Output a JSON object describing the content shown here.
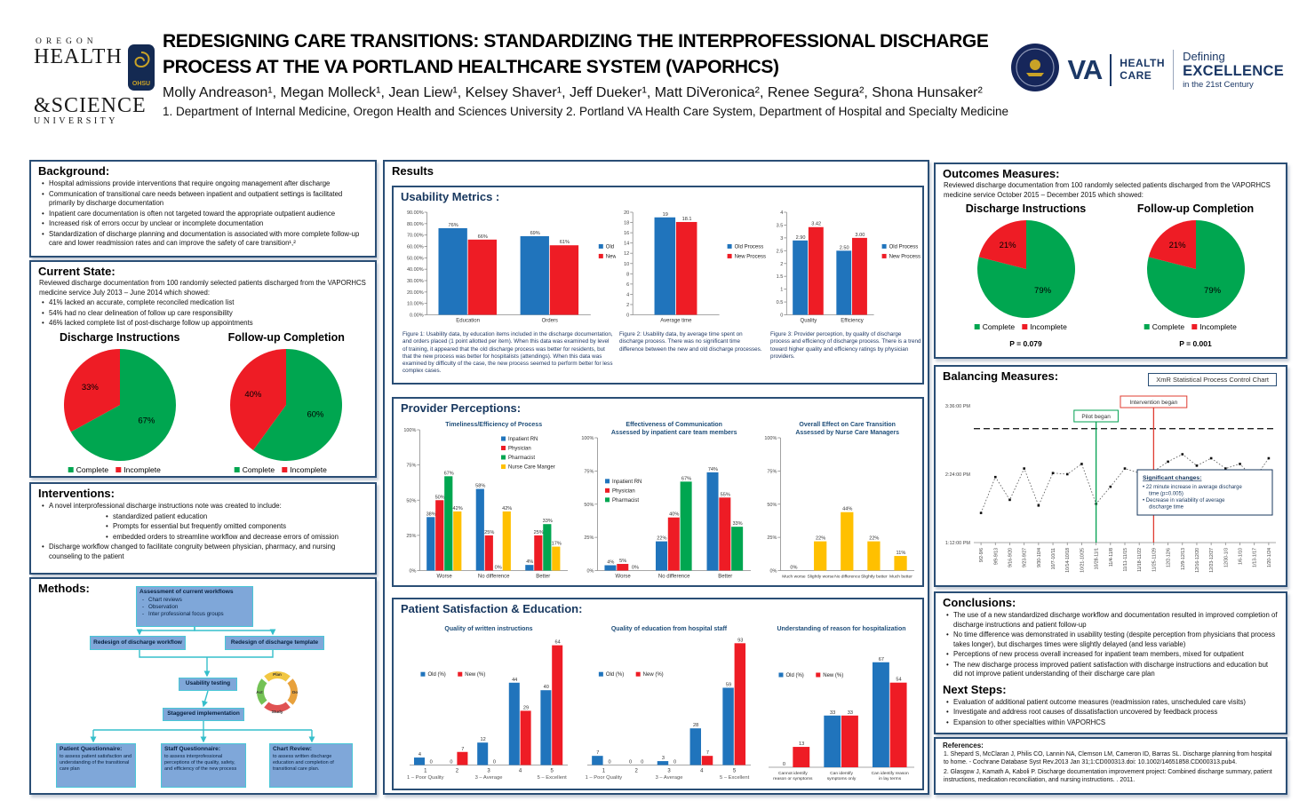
{
  "header": {
    "ohsu": {
      "oregon": "OREGON",
      "health": "HEALTH",
      "science": "&SCIENCE",
      "university": "UNIVERSITY",
      "badge": "OHSU"
    },
    "title": "REDESIGNING CARE TRANSITIONS: STANDARDIZING THE INTERPROFESSIONAL DISCHARGE\nPROCESS AT THE VA PORTLAND HEALTHCARE SYSTEM (VAPORHCS)",
    "authors": "Molly Andreason¹, Megan Molleck¹, Jean Liew¹, Kelsey Shaver¹, Jeff Dueker¹, Matt DiVeronica², Renee Segura², Shona Hunsaker²",
    "affiliations": "1. Department of Internal Medicine, Oregon Health and Sciences University 2. Portland VA Health Care System, Department of Hospital and Specialty Medicine",
    "va": {
      "va": "VA",
      "health_care": "HEALTH\nCARE",
      "defining": "Defining",
      "excellence": "EXCELLENCE",
      "century": "in the 21st Century"
    }
  },
  "background": {
    "heading": "Background:",
    "bullets": [
      "Hospital admissions provide interventions that require ongoing management after discharge",
      "Communication of transitional care needs between inpatient and outpatient settings is facilitated primarily by discharge documentation",
      "Inpatient care documentation is often not targeted toward the appropriate outpatient audience",
      "Increased risk of errors occur by unclear or incomplete documentation",
      "Standardization of discharge planning and documentation is associated with more complete follow-up care and lower readmission rates and can improve the safety of care transition¹,²"
    ]
  },
  "current_state": {
    "heading": "Current State:",
    "intro": "Reviewed discharge documentation from 100 randomly selected patients discharged from the VAPORHCS medicine service July 2013 – June 2014 which showed:",
    "bullets": [
      "41% lacked an accurate, complete reconciled medication list",
      "54% had no clear delineation of follow up care responsibility",
      "46% lacked complete list of post-discharge follow up appointments"
    ]
  },
  "interventions": {
    "heading": "Interventions:",
    "items": [
      {
        "text": "A novel interprofessional discharge instructions note was created to include:",
        "level": 1
      },
      {
        "text": "standardized patient education",
        "level": 2
      },
      {
        "text": "Prompts for essential but frequently omitted components",
        "level": 2
      },
      {
        "text": "embedded orders to streamline workflow and decrease errors of omission",
        "level": 2
      },
      {
        "text": "Discharge workflow changed to facilitate congruity between physician, pharmacy, and nursing counseling to the patient",
        "level": 1
      }
    ]
  },
  "methods": {
    "heading": "Methods:",
    "flow": {
      "assess_title": "Assessment of current workflows",
      "assess_items": [
        "Chart reviews",
        "Observation",
        "Inter professional focus groups"
      ],
      "redesign_workflow": "Redesign of discharge workflow",
      "redesign_template": "Redesign of discharge template",
      "usability": "Usability testing",
      "staggered": "Staggered implementation",
      "q1_title": "Patient Questionnaire:",
      "q1_body": "to assess patient satisfaction and understanding of the transitional care plan",
      "q2_title": "Staff Questionnaire:",
      "q2_body": "to assess interprofessional perceptions of the quality, safety, and efficiency of the new process",
      "q3_title": "Chart Review:",
      "q3_body": "to assess written discharge education and completion of transitional care plan."
    },
    "pdsa": [
      "Plan",
      "Do",
      "Study",
      "Act"
    ]
  },
  "results": {
    "heading": "Results",
    "usability_heading": "Usability Metrics :",
    "provider_heading": "Provider Perceptions:",
    "patient_heading": "Patient Satisfaction & Education:"
  },
  "outcomes": {
    "heading": "Outcomes Measures:",
    "intro": "Reviewed discharge documentation from 100 randomly selected patients discharged from the VAPORHCS medicine service October 2015 – December 2015 which showed:"
  },
  "balancing": {
    "heading": "Balancing Measures:",
    "chart_label": "XmR Statistical Process Control Chart"
  },
  "conclusions": {
    "heading": "Conclusions:",
    "bullets": [
      "The use of a new standardized discharge workflow and documentation resulted in improved completion of discharge instructions and patient follow-up",
      "No time difference was demonstrated in usability testing (despite perception from physicians that process takes longer), but discharges times were slightly delayed (and less variable)",
      "Perceptions of new process overall increased for inpatient team members, mixed for outpatient",
      "The new discharge process improved patient satisfaction with discharge instructions and education but did not improve patient understanding of their discharge care plan"
    ],
    "next_heading": "Next Steps:",
    "next_bullets": [
      "Evaluation of additional patient outcome measures (readmission rates, unscheduled care visits)",
      "Investigate and address root causes of dissatisfaction uncovered by feedback process",
      "Expansion to other specialties within VAPORHCS"
    ]
  },
  "references": {
    "heading": "References:",
    "items": [
      "1. Shepard S, McClaran J, Philis CO, Lannin NA, Clemson LM, Cameron ID, Barras SL. Discharge planning from hospital to home. - Cochrane Database Syst Rev.2013 Jan 31;1:CD000313.doi: 10.1002/14651858.CD000313.pub4.",
      "2. Glasgow J, Kamath A, Kaboli P. Discharge documentation improvement project: Combined discharge summary, patient instructions, medication reconciliation, and nursing instructions. . 2011."
    ]
  },
  "chart_data": [
    {
      "id": "cs_pie_di",
      "type": "pie",
      "title": "Discharge Instructions",
      "labels": [
        "Complete",
        "Incomplete"
      ],
      "values": [
        67,
        33
      ],
      "slice_labels": [
        "67%",
        "33%"
      ],
      "colors": [
        "#00A650",
        "#EE1C25"
      ]
    },
    {
      "id": "cs_pie_fu",
      "type": "pie",
      "title": "Follow-up Completion",
      "labels": [
        "Complete",
        "Incomplete"
      ],
      "values": [
        60,
        40
      ],
      "slice_labels": [
        "60%",
        "40%"
      ],
      "colors": [
        "#00A650",
        "#EE1C25"
      ]
    },
    {
      "id": "um_fig1",
      "type": "bar",
      "categories": [
        "Education",
        "Orders"
      ],
      "ylim": [
        0,
        90
      ],
      "yticks": [
        0,
        10,
        20,
        30,
        40,
        50,
        60,
        70,
        80,
        90
      ],
      "ytick_labels": [
        "0.00%",
        "10.00%",
        "20.00%",
        "30.00%",
        "40.00%",
        "50.00%",
        "60.00%",
        "70.00%",
        "80.00%",
        "90.00%"
      ],
      "series": [
        {
          "name": "Old",
          "color": "#2074BC",
          "values": [
            76,
            69
          ],
          "labels": [
            "76%",
            "69%"
          ]
        },
        {
          "name": "New",
          "color": "#EE1C25",
          "values": [
            66,
            61
          ],
          "labels": [
            "66%",
            "61%"
          ]
        }
      ],
      "legend": "right",
      "caption": "Figure 1: Usability data, by education items included in the discharge documentation, and orders placed (1 point allotted per item). When this data was examined by level of training, it appeared that the old discharge process was better for residents, but that the new process was better for hospitalists (attendings). When this data was examined by difficulty of the case, the new process seemed to perform better for less complex cases."
    },
    {
      "id": "um_fig2",
      "type": "bar",
      "categories": [
        "Average time"
      ],
      "ylim": [
        0,
        20
      ],
      "yticks": [
        0,
        2,
        4,
        6,
        8,
        10,
        12,
        14,
        16,
        18,
        20
      ],
      "ytick_labels": [
        "0",
        "2",
        "4",
        "6",
        "8",
        "10",
        "12",
        "14",
        "16",
        "18",
        "20"
      ],
      "bar_frac": 0.5,
      "series": [
        {
          "name": "Old Process",
          "color": "#2074BC",
          "values": [
            19
          ],
          "labels": [
            "19"
          ]
        },
        {
          "name": "New Process",
          "color": "#EE1C25",
          "values": [
            18.1
          ],
          "labels": [
            "18.1"
          ]
        }
      ],
      "legend": "right",
      "caption": "Figure 2: Usability data, by average time spent on discharge process. There was no significant time difference between the new and old discharge processes."
    },
    {
      "id": "um_fig3",
      "type": "bar",
      "categories": [
        "Quality",
        "Efficiency"
      ],
      "ylim": [
        0,
        4
      ],
      "yticks": [
        0,
        0.5,
        1,
        1.5,
        2,
        2.5,
        3,
        3.5,
        4
      ],
      "ytick_labels": [
        "0",
        "0.5",
        "1",
        "1.5",
        "2",
        "2.5",
        "3",
        "3.5",
        "4"
      ],
      "series": [
        {
          "name": "Old Process",
          "color": "#2074BC",
          "values": [
            2.9,
            2.5
          ],
          "labels": [
            "2.90",
            "2.50"
          ]
        },
        {
          "name": "New Process",
          "color": "#EE1C25",
          "values": [
            3.42,
            3.0
          ],
          "labels": [
            "3.42",
            "3.00"
          ]
        }
      ],
      "legend": "right",
      "caption": "Figure 3: Provider perception, by quality of discharge process and efficiency of discharge process. There is a trend toward higher quality and efficiency ratings by physician providers."
    },
    {
      "id": "pp1",
      "type": "bar",
      "title": "Timeliness/Efficiency of Process",
      "categories": [
        "Worse",
        "No difference",
        "Better"
      ],
      "ylim": [
        0,
        100
      ],
      "yticks": [
        0,
        25,
        50,
        75,
        100
      ],
      "ytick_labels": [
        "0%",
        "25%",
        "50%",
        "75%",
        "100%"
      ],
      "series": [
        {
          "name": "Inpatient RN",
          "color": "#2074BC",
          "values": [
            38,
            58,
            4
          ],
          "labels": [
            "38%",
            "58%",
            "4%"
          ]
        },
        {
          "name": "Physician",
          "color": "#EE1C25",
          "values": [
            50,
            25,
            25
          ],
          "labels": [
            "50%",
            "25%",
            "25%"
          ]
        },
        {
          "name": "Pharmacist",
          "color": "#00A650",
          "values": [
            67,
            0,
            33
          ],
          "labels": [
            "67%",
            "0%",
            "33%"
          ]
        },
        {
          "name": "Nurse Care Manger",
          "color": "#FFC000",
          "values": [
            42,
            42,
            17
          ],
          "labels": [
            "42%",
            "42%",
            "17%"
          ]
        }
      ],
      "legend": "inset-tr"
    },
    {
      "id": "pp2",
      "type": "bar",
      "title": "Effectiveness of Communication\nAssessed by inpatient care team members",
      "categories": [
        "Worse",
        "No difference",
        "Better"
      ],
      "ylim": [
        0,
        100
      ],
      "yticks": [
        0,
        25,
        50,
        75,
        100
      ],
      "ytick_labels": [
        "0%",
        "25%",
        "50%",
        "75%",
        "100%"
      ],
      "series": [
        {
          "name": "Inpatient RN",
          "color": "#2074BC",
          "values": [
            4,
            22,
            74
          ],
          "labels": [
            "4%",
            "22%",
            "74%"
          ]
        },
        {
          "name": "Physician",
          "color": "#EE1C25",
          "values": [
            5,
            40,
            55
          ],
          "labels": [
            "5%",
            "40%",
            "55%"
          ]
        },
        {
          "name": "Pharmacist",
          "color": "#00A650",
          "values": [
            0,
            67,
            33
          ],
          "labels": [
            "0%",
            "67%",
            "33%"
          ]
        }
      ],
      "legend": "inset-l"
    },
    {
      "id": "pp3",
      "type": "bar",
      "title": "Overall Effect on Care Transition\nAssessed by Nurse Care Managers",
      "categories": [
        "Much worse",
        "Slightly worse",
        "No difference",
        "Slightly better",
        "Much better"
      ],
      "ylim": [
        0,
        100
      ],
      "yticks": [
        0,
        25,
        50,
        75,
        100
      ],
      "ytick_labels": [
        "0%",
        "25%",
        "50%",
        "75%",
        "100%"
      ],
      "bar_frac": 0.5,
      "small_cats": true,
      "series": [
        {
          "name": "Nurse Care Managers",
          "color": "#FFC000",
          "values": [
            0,
            22,
            44,
            22,
            11
          ],
          "labels": [
            "0%",
            "22%",
            "44%",
            "22%",
            "11%"
          ]
        }
      ],
      "legend": "none"
    },
    {
      "id": "ps1",
      "type": "bar",
      "title": "Quality of written instructions",
      "categories": [
        "1",
        "2",
        "3",
        "4",
        "5"
      ],
      "ylim": [
        0,
        70
      ],
      "series": [
        {
          "name": "Old (%)",
          "color": "#2074BC",
          "values": [
            4,
            0,
            12,
            44,
            40
          ],
          "labels": [
            "4",
            "0",
            "12",
            "44",
            "40"
          ]
        },
        {
          "name": "New (%)",
          "color": "#EE1C25",
          "values": [
            0,
            7,
            0,
            29,
            64
          ],
          "labels": [
            "0",
            "7",
            "0",
            "29",
            "64"
          ]
        }
      ],
      "legend": "inline",
      "sub_labels": [
        {
          "cat": 0,
          "text": "1 – Poor Quality"
        },
        {
          "cat": 2,
          "text": "3 – Average"
        },
        {
          "cat": 4,
          "text": "5 – Excellent"
        }
      ]
    },
    {
      "id": "ps2",
      "type": "bar",
      "title": "Quality of education from hospital staff",
      "categories": [
        "1",
        "2",
        "3",
        "4",
        "5"
      ],
      "ylim": [
        0,
        100
      ],
      "series": [
        {
          "name": "Old (%)",
          "color": "#2074BC",
          "values": [
            7,
            0,
            3,
            28,
            59
          ],
          "labels": [
            "7",
            "0",
            "3",
            "28",
            "59"
          ]
        },
        {
          "name": "New (%)",
          "color": "#EE1C25",
          "values": [
            0,
            0,
            0,
            7,
            93
          ],
          "labels": [
            "0",
            "0",
            "0",
            "7",
            "93"
          ]
        }
      ],
      "legend": "inline",
      "sub_labels": [
        {
          "cat": 0,
          "text": "1 – Poor Quality"
        },
        {
          "cat": 2,
          "text": "3 – Average"
        },
        {
          "cat": 4,
          "text": "5 – Excellent"
        }
      ]
    },
    {
      "id": "ps3",
      "type": "bar",
      "title": "Understanding of reason for hospitalization",
      "categories": [
        "Cannot identify\nreason or symptoms",
        "Can identify\nsymptoms only",
        "Can identify reason\nin lay terms"
      ],
      "ylim": [
        0,
        85
      ],
      "small_cats": true,
      "series": [
        {
          "name": "Old (%)",
          "color": "#2074BC",
          "values": [
            0,
            33,
            67
          ],
          "labels": [
            "0",
            "33",
            "67"
          ]
        },
        {
          "name": "New (%)",
          "color": "#EE1C25",
          "values": [
            13,
            33,
            54
          ],
          "labels": [
            "13",
            "33",
            "54"
          ]
        }
      ],
      "legend": "inline"
    },
    {
      "id": "om_pie_di",
      "type": "pie",
      "title": "Discharge Instructions",
      "labels": [
        "Complete",
        "Incomplete"
      ],
      "values": [
        79,
        21
      ],
      "slice_labels": [
        "79%",
        "21%"
      ],
      "colors": [
        "#00A650",
        "#EE1C25"
      ],
      "p_value": "P = 0.079"
    },
    {
      "id": "om_pie_fu",
      "type": "pie",
      "title": "Follow-up Completion",
      "labels": [
        "Complete",
        "Incomplete"
      ],
      "values": [
        79,
        21
      ],
      "slice_labels": [
        "79%",
        "21%"
      ],
      "colors": [
        "#00A650",
        "#EE1C25"
      ],
      "p_value": "P = 0.001"
    },
    {
      "id": "xmr",
      "type": "control",
      "ylim": [
        13.2,
        15.6
      ],
      "ucl": 15.2,
      "yticks": [
        {
          "v": 13.2,
          "label": "1:12:00 PM"
        },
        {
          "v": 14.4,
          "label": "2:24:00 PM"
        },
        {
          "v": 15.6,
          "label": "3:36:00 PM"
        }
      ],
      "values": [
        13.72,
        14.35,
        13.95,
        14.5,
        13.85,
        14.42,
        14.4,
        14.58,
        13.88,
        14.18,
        14.5,
        14.42,
        14.45,
        14.62,
        14.75,
        14.55,
        14.68,
        14.5,
        14.58,
        14.32,
        14.68
      ],
      "x_labels": [
        "9/2-9/6",
        "9/9-9/13",
        "9/16-9/20",
        "9/23-9/27",
        "9/30-10/4",
        "10/7-10/11",
        "10/14-10/18",
        "10/21-10/25",
        "10/28-11/1",
        "11/4-11/8",
        "11/11-11/15",
        "11/18-11/22",
        "11/25-11/29",
        "12/2-12/6",
        "12/9-12/13",
        "12/16-12/20",
        "12/23-12/27",
        "12/30-1/3",
        "1/6-1/10",
        "1/13-1/17",
        "1/20-1/24"
      ],
      "pilot": {
        "index": 8,
        "label": "Pilot began"
      },
      "intervention": {
        "index": 12,
        "label": "Intervention began"
      },
      "note": {
        "heading": "Significant changes:",
        "bullets": [
          "22 minute increase in average discharge time (p=0.005)",
          "Decrease in variability of average discharge time"
        ]
      }
    }
  ]
}
